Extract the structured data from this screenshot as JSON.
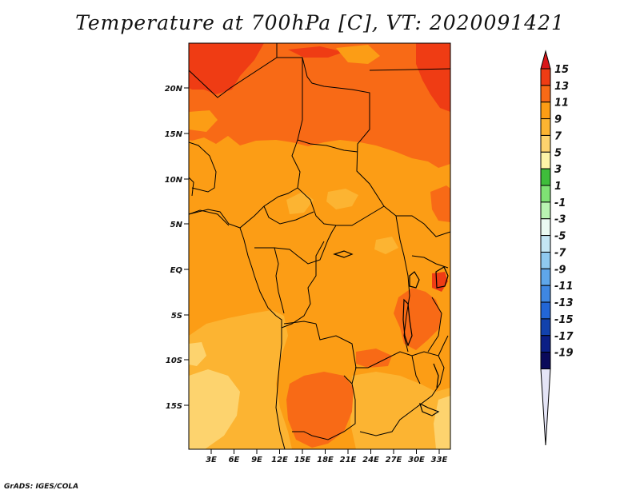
{
  "title": "Temperature at 700hPa [C], VT: 2020091421",
  "credit": "GrADS: IGES/COLA",
  "lat_ticks": [
    "20N",
    "15N",
    "10N",
    "5N",
    "EQ",
    "5S",
    "10S",
    "15S"
  ],
  "lon_ticks": [
    "3E",
    "6E",
    "9E",
    "12E",
    "15E",
    "18E",
    "21E",
    "24E",
    "27E",
    "30E",
    "33E"
  ],
  "colorbar": {
    "labels": [
      "15",
      "13",
      "11",
      "9",
      "7",
      "5",
      "3",
      "1",
      "-1",
      "-3",
      "-5",
      "-7",
      "-9",
      "-11",
      "-13",
      "-15",
      "-17",
      "-19"
    ],
    "colors": [
      "#d9171a",
      "#ef3c14",
      "#f86a16",
      "#fc9d15",
      "#fcb432",
      "#fdd36e",
      "#fdf4a8",
      "#3fbd3b",
      "#7fe274",
      "#b9f4b2",
      "#ebfaf2",
      "#c4e6f4",
      "#8fc9ef",
      "#5fa6ea",
      "#3f87e2",
      "#2266d6",
      "#1242ad",
      "#0b1f86",
      "#0a0a5a",
      "#e4e4f6"
    ]
  },
  "map": {
    "palette": {
      "t13": "#ef3c14",
      "t11": "#f86a16",
      "t9": "#fc9d15",
      "t7": "#fcb432",
      "t5": "#fdd36e"
    }
  }
}
